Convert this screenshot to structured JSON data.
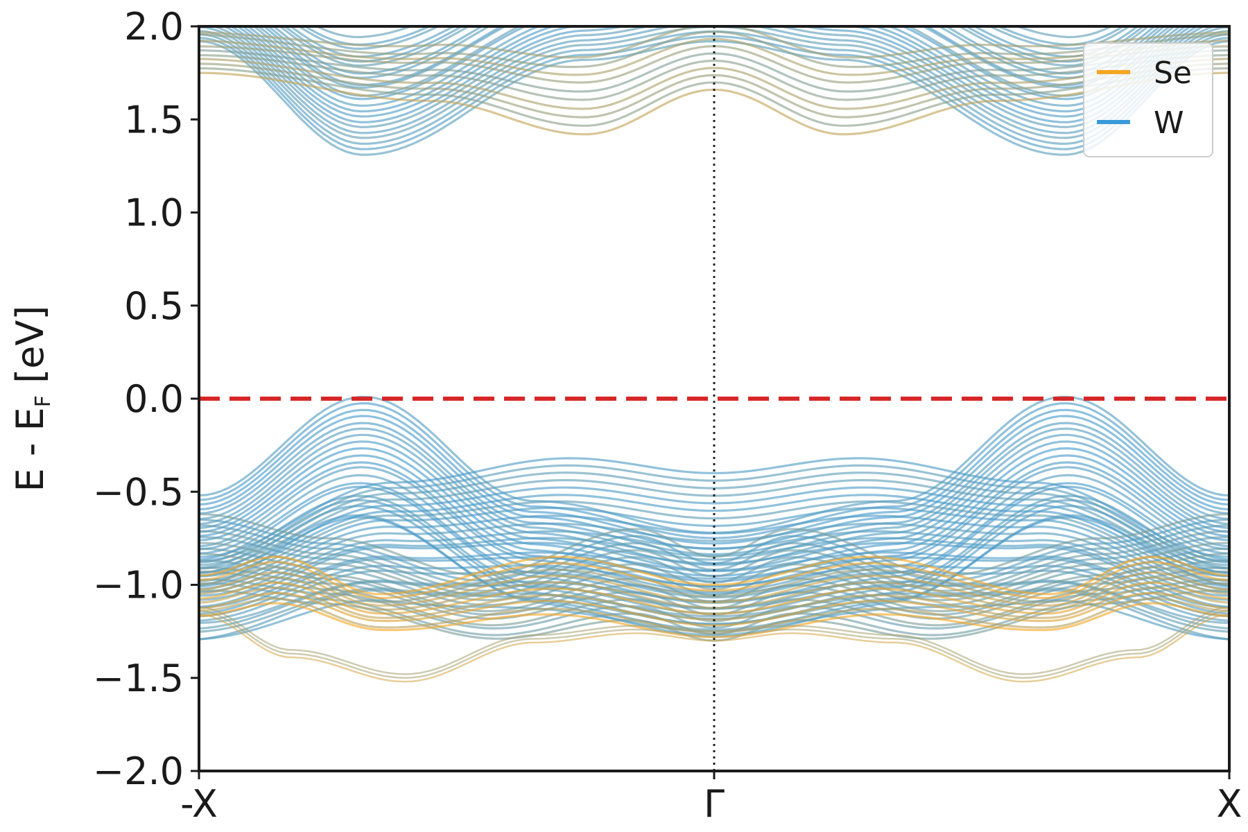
{
  "chart_data": {
    "type": "line",
    "title": "",
    "xlabel": "",
    "ylabel": {
      "main_prefix": "E - E",
      "main_sub1": "F",
      "main_suffix": " [eV]"
    },
    "ylim": [
      -2.0,
      2.0
    ],
    "yticks": [
      {
        "value": 2.0,
        "label": "2.0"
      },
      {
        "value": 1.5,
        "label": "1.5"
      },
      {
        "value": 1.0,
        "label": "1.0"
      },
      {
        "value": 0.5,
        "label": "0.5"
      },
      {
        "value": 0.0,
        "label": "0.0"
      },
      {
        "value": -0.5,
        "label": "−0.5"
      },
      {
        "value": -1.0,
        "label": "−1.0"
      },
      {
        "value": -1.5,
        "label": "−1.5"
      },
      {
        "value": -2.0,
        "label": "−2.0"
      }
    ],
    "xlim": [
      -1,
      1
    ],
    "xticks": [
      {
        "value": -1,
        "label": "-X"
      },
      {
        "value": 0,
        "label": "Γ"
      },
      {
        "value": 1,
        "label": "X"
      }
    ],
    "fermi_level": 0.0,
    "fermi_color": "#d62728",
    "gamma_line_x": 0,
    "grid": false,
    "legend": {
      "placement": "top-right",
      "entries": [
        {
          "name": "Se",
          "color": "#f5a623"
        },
        {
          "name": "W",
          "color": "#3a9ad9"
        }
      ]
    },
    "band_groups": [
      {
        "kind": "conduction",
        "count": 22,
        "x": [
          -1,
          -0.68,
          -0.25,
          0,
          0.25,
          0.68,
          1
        ],
        "base": [
          1.92,
          1.31,
          1.82,
          1.92,
          1.82,
          1.31,
          1.92
        ],
        "spread": 0.55,
        "se_mix": 0.15
      },
      {
        "kind": "conduction-se",
        "count": 10,
        "x": [
          -1,
          -0.55,
          -0.25,
          0,
          0.25,
          0.55,
          1
        ],
        "base": [
          1.75,
          1.6,
          1.42,
          1.66,
          1.42,
          1.6,
          1.75
        ],
        "spread": 0.35,
        "se_mix": 0.55
      },
      {
        "kind": "valence-top",
        "count": 20,
        "x": [
          -1,
          -0.68,
          -0.35,
          0,
          0.35,
          0.68,
          1
        ],
        "base": [
          -0.52,
          0.01,
          -0.55,
          -0.72,
          -0.55,
          0.01,
          -0.52
        ],
        "spread": 0.55,
        "se_mix": 0.1
      },
      {
        "kind": "valence-mid",
        "count": 22,
        "x": [
          -1,
          -0.62,
          -0.28,
          0,
          0.28,
          0.62,
          1
        ],
        "base": [
          -0.85,
          -0.45,
          -0.32,
          -0.4,
          -0.32,
          -0.45,
          -0.85
        ],
        "spread": 0.85,
        "se_mix": 0.15
      },
      {
        "kind": "valence-cross",
        "count": 14,
        "x": [
          -1,
          -0.75,
          -0.45,
          -0.15,
          0,
          0.15,
          0.45,
          0.75,
          1
        ],
        "base": [
          -0.62,
          -0.75,
          -0.95,
          -0.7,
          -0.85,
          -0.7,
          -0.95,
          -0.75,
          -0.62
        ],
        "spread": 0.45,
        "se_mix": 0.25
      },
      {
        "kind": "valence-se",
        "count": 10,
        "x": [
          -1,
          -0.85,
          -0.65,
          -0.3,
          0,
          0.3,
          0.65,
          0.85,
          1
        ],
        "base": [
          -0.95,
          -0.85,
          -1.05,
          -0.85,
          -1.0,
          -0.85,
          -1.05,
          -0.85,
          -0.95
        ],
        "spread": 0.28,
        "se_mix": 0.75
      },
      {
        "kind": "deep-se",
        "count": 3,
        "x": [
          -1,
          -0.82,
          -0.6,
          -0.35,
          -0.15,
          0,
          0.15,
          0.35,
          0.6,
          0.82,
          1
        ],
        "base": [
          -1.12,
          -1.35,
          -1.48,
          -1.27,
          -1.22,
          -1.26,
          -1.22,
          -1.27,
          -1.48,
          -1.35,
          -1.12
        ],
        "spread": 0.04,
        "se_mix": 0.8
      }
    ]
  }
}
